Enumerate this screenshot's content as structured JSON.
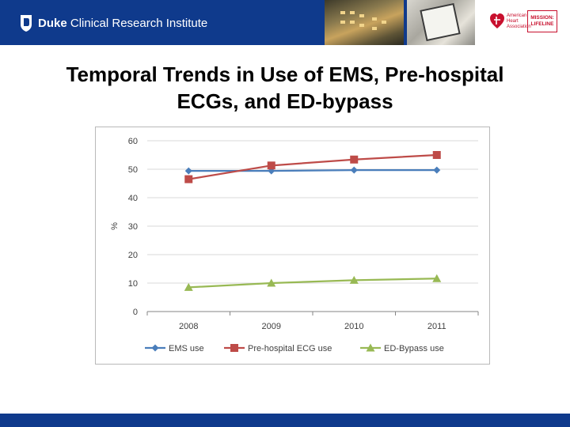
{
  "header": {
    "logo_text_bold": "Duke",
    "logo_text_rest": " Clinical Research Institute",
    "ha_logo_lines": [
      "American",
      "Heart",
      "Association"
    ],
    "ml_logo_lines": [
      "MISSION:",
      "LIFELINE"
    ]
  },
  "title_line1": "Temporal Trends in Use of EMS, Pre-hospital",
  "title_line2": "ECGs, and ED-bypass",
  "colors": {
    "header_bg": "#0f3a8c",
    "ems": "#4a7ebb",
    "ecg": "#be4b48",
    "bypass": "#98b954"
  },
  "chart_data": {
    "type": "line",
    "title": "",
    "xlabel": "",
    "ylabel": "%",
    "categories": [
      "2008",
      "2009",
      "2010",
      "2011"
    ],
    "ylim": [
      0,
      60
    ],
    "yticks": [
      "0",
      "10",
      "20",
      "30",
      "40",
      "50",
      "60"
    ],
    "grid": true,
    "legend_position": "bottom",
    "series": [
      {
        "name": "EMS use",
        "values": [
          49.4,
          49.4,
          49.7,
          49.7
        ],
        "marker": "diamond",
        "color": "#4a7ebb"
      },
      {
        "name": "Pre-hospital ECG use",
        "values": [
          46.5,
          51.3,
          53.4,
          55.0
        ],
        "marker": "square",
        "color": "#be4b48"
      },
      {
        "name": "ED-Bypass use",
        "values": [
          8.5,
          10.0,
          11.0,
          11.6
        ],
        "marker": "triangle",
        "color": "#98b954"
      }
    ]
  }
}
